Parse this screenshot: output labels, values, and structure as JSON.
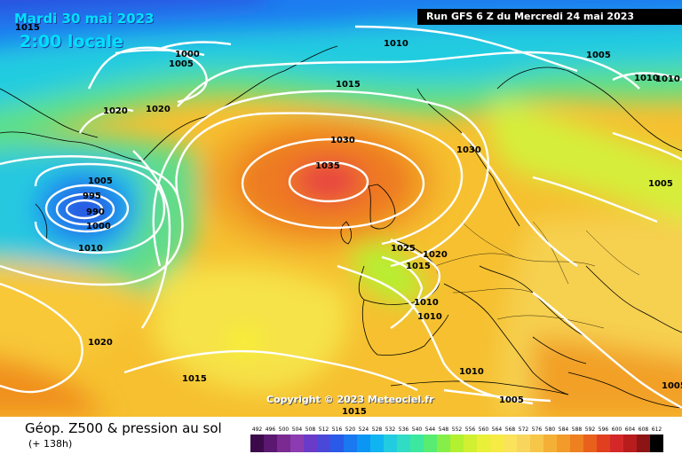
{
  "header": {
    "date": "Mardi 30 mai 2023",
    "time": "2:00 locale",
    "run": "Run GFS 6 Z du Mercredi 24 mai 2023"
  },
  "map": {
    "isobar_labels": [
      {
        "text": "1015"
      },
      {
        "text": "1000"
      },
      {
        "text": "1005"
      },
      {
        "text": "1010"
      },
      {
        "text": "1015"
      },
      {
        "text": "1005"
      },
      {
        "text": "1010"
      },
      {
        "text": "1010"
      },
      {
        "text": "1020"
      },
      {
        "text": "1020"
      },
      {
        "text": "1030"
      },
      {
        "text": "1035"
      },
      {
        "text": "1030"
      },
      {
        "text": "1005"
      },
      {
        "text": "1005"
      },
      {
        "text": "995"
      },
      {
        "text": "990"
      },
      {
        "text": "1000"
      },
      {
        "text": "1010"
      },
      {
        "text": "1025"
      },
      {
        "text": "1020"
      },
      {
        "text": "1015"
      },
      {
        "text": "1010"
      },
      {
        "text": "1010"
      },
      {
        "text": "1020"
      },
      {
        "text": "1015"
      },
      {
        "text": "1010"
      },
      {
        "text": "1005"
      },
      {
        "text": "1015"
      },
      {
        "text": "1005"
      }
    ]
  },
  "footer": {
    "copyright": "Copyright © 2023 Meteociel.fr",
    "title": "Géop. Z500 & pression au sol",
    "subtitle": "(+ 138h)"
  },
  "legend": {
    "values": [
      "492",
      "496",
      "500",
      "504",
      "508",
      "512",
      "516",
      "520",
      "524",
      "528",
      "532",
      "536",
      "540",
      "544",
      "548",
      "552",
      "556",
      "560",
      "564",
      "568",
      "572",
      "576",
      "580",
      "584",
      "588",
      "592",
      "596",
      "600",
      "604",
      "608",
      "612"
    ],
    "colors": [
      "#3c0a4a",
      "#5a1870",
      "#7a2a90",
      "#8c3cb0",
      "#6a3ac8",
      "#4a48d8",
      "#2a5ae8",
      "#1a78f0",
      "#0c96f4",
      "#10b4f0",
      "#22cce0",
      "#30dcc4",
      "#3ce8a0",
      "#58ec72",
      "#86ee48",
      "#b2f030",
      "#d2f032",
      "#eaf038",
      "#f6ea44",
      "#fae25a",
      "#f8d65e",
      "#f6c648",
      "#f4b036",
      "#f29a2a",
      "#ee8020",
      "#e8601c",
      "#e04020",
      "#d42828",
      "#b81c1c",
      "#8c1414",
      "#000000"
    ]
  }
}
